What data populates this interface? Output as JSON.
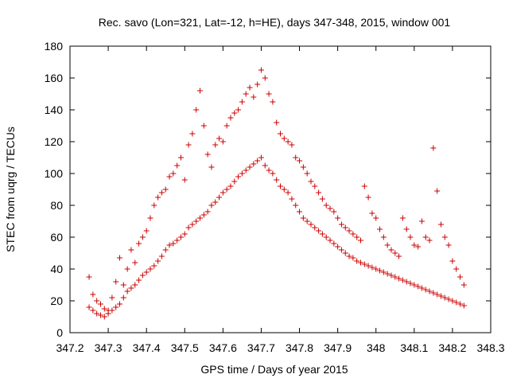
{
  "chart_data": {
    "type": "scatter",
    "title": "Rec. savo (Lon=321, Lat=-12, h=HE), days 347-348, 2015, window 001",
    "xlabel": "GPS time / Days of year 2015",
    "ylabel": "STEC from uqrg / TECUs",
    "xlim": [
      347.2,
      348.3
    ],
    "ylim": [
      0,
      180
    ],
    "x_ticks": [
      347.2,
      347.3,
      347.4,
      347.5,
      347.6,
      347.7,
      347.8,
      347.9,
      348.0,
      348.1,
      348.2,
      348.3
    ],
    "x_tick_labels": [
      "347.2",
      "347.3",
      "347.4",
      "347.5",
      "347.6",
      "347.7",
      "347.8",
      "347.9",
      "348",
      "348.1",
      "348.2",
      "348.3"
    ],
    "y_ticks": [
      0,
      20,
      40,
      60,
      80,
      100,
      120,
      140,
      160,
      180
    ],
    "y_tick_labels": [
      "0",
      "20",
      "40",
      "60",
      "80",
      "100",
      "120",
      "140",
      "160",
      "180"
    ],
    "grid": false,
    "marker": "+",
    "color": "#cc0000",
    "series": [
      {
        "x": [
          347.25,
          347.25,
          347.26,
          347.26,
          347.27,
          347.27,
          347.28,
          347.28,
          347.29,
          347.29,
          347.3,
          347.3,
          347.31,
          347.31,
          347.32,
          347.32,
          347.33,
          347.33,
          347.34,
          347.34,
          347.35,
          347.35,
          347.36,
          347.36,
          347.37,
          347.37,
          347.38,
          347.38,
          347.39,
          347.39,
          347.4,
          347.4,
          347.41,
          347.41,
          347.42,
          347.42,
          347.43,
          347.43,
          347.44,
          347.44,
          347.45,
          347.45,
          347.46,
          347.46,
          347.47,
          347.47,
          347.48,
          347.48,
          347.49,
          347.49,
          347.5,
          347.5,
          347.51,
          347.51,
          347.52,
          347.52,
          347.53,
          347.53,
          347.54,
          347.54,
          347.55,
          347.55,
          347.56,
          347.56,
          347.57,
          347.57,
          347.58,
          347.58,
          347.59,
          347.59,
          347.6,
          347.6,
          347.61,
          347.61,
          347.62,
          347.62,
          347.63,
          347.63,
          347.64,
          347.64,
          347.65,
          347.65,
          347.66,
          347.66,
          347.67,
          347.67,
          347.68,
          347.68,
          347.69,
          347.69,
          347.7,
          347.7,
          347.71,
          347.71,
          347.72,
          347.72,
          347.73,
          347.73,
          347.74,
          347.74,
          347.75,
          347.75,
          347.76,
          347.76,
          347.77,
          347.77,
          347.78,
          347.78,
          347.79,
          347.79,
          347.8,
          347.8,
          347.81,
          347.81,
          347.82,
          347.82,
          347.83,
          347.83,
          347.84,
          347.84,
          347.85,
          347.85,
          347.86,
          347.86,
          347.87,
          347.87,
          347.88,
          347.88,
          347.89,
          347.89,
          347.9,
          347.9,
          347.91,
          347.91,
          347.92,
          347.92,
          347.93,
          347.93,
          347.94,
          347.94,
          347.95,
          347.95,
          347.96,
          347.96,
          347.97,
          347.97,
          347.98,
          347.98,
          347.99,
          347.99,
          348.0,
          348.0,
          348.01,
          348.01,
          348.02,
          348.02,
          348.03,
          348.03,
          348.04,
          348.04,
          348.05,
          348.05,
          348.06,
          348.06,
          348.07,
          348.07,
          348.08,
          348.08,
          348.09,
          348.09,
          348.1,
          348.1,
          348.11,
          348.11,
          348.12,
          348.12,
          348.13,
          348.13,
          348.14,
          348.14,
          348.15,
          348.15,
          348.16,
          348.16,
          348.17,
          348.17,
          348.18,
          348.18,
          348.19,
          348.19,
          348.2,
          348.2,
          348.21,
          348.21,
          348.22,
          348.22,
          348.23,
          348.23
        ],
        "y": [
          35,
          16,
          14,
          24,
          12,
          20,
          11,
          18,
          10,
          15,
          12,
          14,
          14,
          22,
          16,
          32,
          18,
          47,
          22,
          30,
          26,
          40,
          28,
          52,
          30,
          44,
          33,
          56,
          36,
          60,
          38,
          64,
          40,
          72,
          42,
          80,
          45,
          85,
          48,
          88,
          52,
          90,
          55,
          98,
          56,
          100,
          58,
          105,
          60,
          110,
          62,
          96,
          66,
          118,
          68,
          125,
          70,
          140,
          72,
          152,
          74,
          130,
          76,
          112,
          80,
          104,
          82,
          118,
          85,
          122,
          88,
          120,
          90,
          130,
          92,
          135,
          95,
          138,
          98,
          140,
          100,
          145,
          102,
          150,
          104,
          154,
          106,
          148,
          108,
          156,
          110,
          165,
          105,
          160,
          102,
          150,
          100,
          145,
          96,
          132,
          92,
          125,
          90,
          122,
          88,
          120,
          84,
          118,
          80,
          110,
          76,
          108,
          72,
          104,
          70,
          100,
          68,
          95,
          66,
          92,
          64,
          88,
          62,
          84,
          60,
          80,
          58,
          78,
          56,
          76,
          54,
          72,
          52,
          68,
          50,
          66,
          48,
          64,
          47,
          62,
          45,
          60,
          44,
          58,
          43,
          92,
          42,
          85,
          41,
          75,
          40,
          72,
          39,
          65,
          38,
          60,
          37,
          55,
          36,
          52,
          35,
          50,
          34,
          48,
          33,
          72,
          32,
          65,
          31,
          60,
          30,
          55,
          29,
          54,
          28,
          70,
          27,
          60,
          26,
          58,
          25,
          116,
          24,
          89,
          23,
          68,
          22,
          60,
          21,
          55,
          20,
          45,
          19,
          40,
          18,
          35,
          17,
          30
        ]
      }
    ],
    "marks_note_free": true
  }
}
